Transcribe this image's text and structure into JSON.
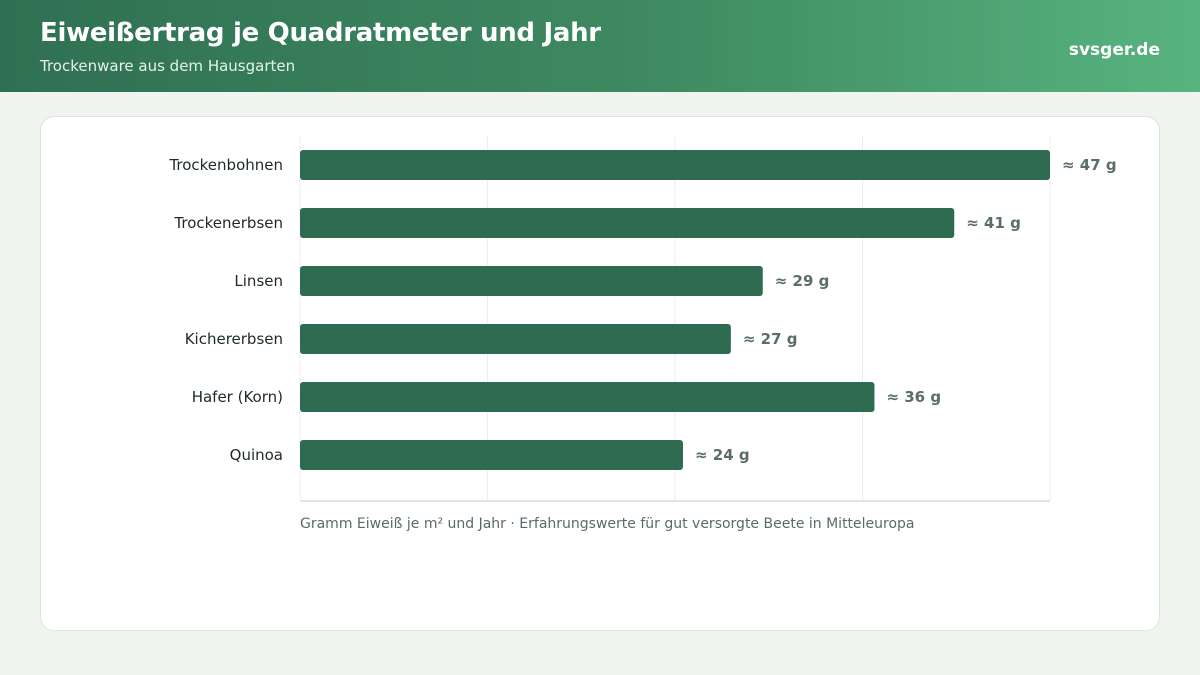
{
  "header": {
    "title": "Eiweißertrag je Quadratmeter und Jahr",
    "subtitle": "Trockenware aus dem Hausgarten",
    "brand": "svsger.de"
  },
  "colors": {
    "bar": "#2e6b51",
    "grid": "#eceeec",
    "axis": "#d6ddd8"
  },
  "chart_data": {
    "type": "bar",
    "orientation": "horizontal",
    "categories": [
      "Trockenbohnen",
      "Trockenerbsen",
      "Linsen",
      "Kichererbsen",
      "Hafer (Korn)",
      "Quinoa"
    ],
    "values": [
      47,
      41,
      29,
      27,
      36,
      24
    ],
    "value_labels": [
      "≈ 47 g",
      "≈ 41 g",
      "≈ 29 g",
      "≈ 27 g",
      "≈ 36 g",
      "≈ 24 g"
    ],
    "xlim": [
      0,
      47
    ],
    "caption": "Gramm Eiweiß je m² und Jahr · Erfahrungswerte für gut versorgte Beete in Mitteleuropa",
    "grid": true,
    "legend": "none"
  }
}
